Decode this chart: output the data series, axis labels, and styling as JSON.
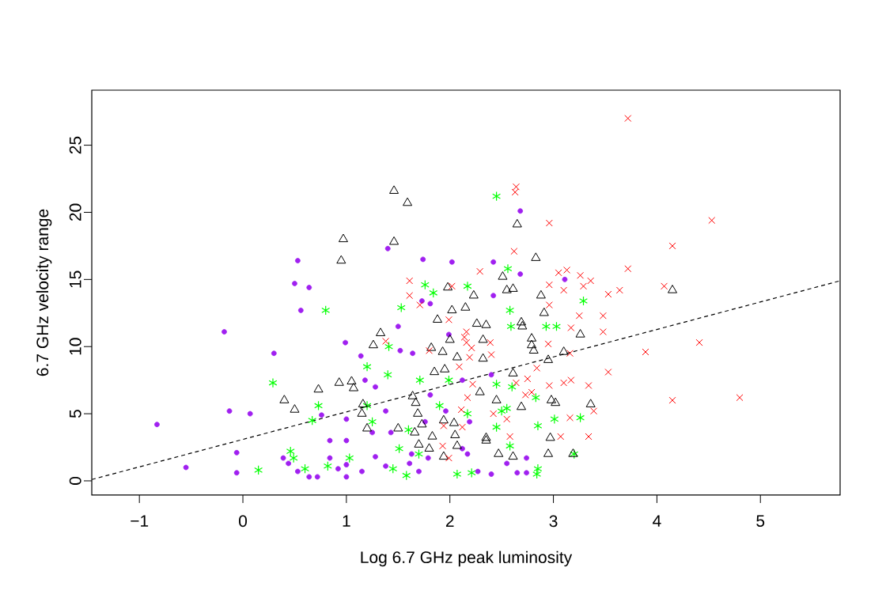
{
  "chart_data": {
    "type": "scatter",
    "xlabel": "Log 6.7 GHz peak luminosity",
    "ylabel": "6.7 GHz velocity range",
    "xlim": [
      -1.46,
      5.77
    ],
    "ylim": [
      -1.06,
      29.1
    ],
    "xticks": [
      {
        "value": -1,
        "label": "−1"
      },
      0,
      1,
      2,
      3,
      4,
      5
    ],
    "yticks": [
      0,
      5,
      10,
      15,
      20,
      25
    ],
    "grid": false,
    "series": [
      {
        "color": "#a020f0",
        "marker": "circle",
        "x": [
          -0.83,
          -0.55,
          -0.18,
          -0.13,
          -0.06,
          -0.06,
          0.07,
          0.3,
          0.53,
          0.5,
          0.64,
          0.56,
          0.39,
          0.44,
          0.53,
          0.64,
          0.72,
          0.76,
          0.84,
          0.84,
          0.92,
          0.99,
          1.0,
          1.0,
          1.0,
          1.0,
          1.14,
          1.18,
          1.28,
          1.25,
          1.28,
          1.15,
          1.38,
          1.4,
          1.5,
          1.52,
          1.38,
          1.43,
          1.61,
          1.64,
          1.73,
          1.81,
          2.02,
          1.7,
          1.76,
          2.17,
          2.68,
          1.74,
          2.42,
          2.68,
          3.11,
          2.42,
          1.99,
          2.12,
          2.4,
          1.81,
          1.96,
          2.19,
          1.63,
          1.79,
          2.12,
          2.27,
          2.4,
          2.55,
          2.65,
          2.74,
          2.74
        ],
        "values": [
          4.2,
          1.0,
          11.1,
          5.2,
          2.1,
          0.6,
          5.0,
          9.5,
          16.4,
          14.7,
          14.4,
          12.7,
          1.7,
          1.3,
          0.7,
          0.3,
          0.3,
          4.9,
          3.0,
          1.7,
          0.9,
          10.3,
          4.6,
          3.0,
          1.2,
          0.3,
          9.3,
          7.5,
          7.0,
          3.6,
          1.8,
          0.7,
          5.2,
          17.3,
          11.5,
          9.7,
          1.1,
          3.6,
          1.3,
          9.5,
          13.4,
          13.2,
          16.3,
          0.7,
          4.4,
          2.0,
          20.1,
          16.5,
          16.3,
          15.4,
          15.0,
          13.8,
          10.9,
          7.5,
          7.9,
          6.4,
          5.2,
          4.4,
          2.0,
          1.7,
          2.4,
          0.7,
          0.5,
          1.3,
          0.6,
          0.6,
          1.7
        ]
      },
      {
        "color": "#00ff00",
        "x": [
          0.15,
          0.29,
          0.46,
          0.49,
          0.6,
          0.73,
          0.67,
          0.8,
          0.82,
          1.03,
          1.2,
          1.4,
          1.41,
          1.2,
          1.25,
          1.53,
          1.6,
          1.51,
          1.71,
          1.76,
          1.84,
          1.7,
          1.45,
          1.58,
          1.9,
          2.17,
          2.17,
          2.07,
          2.21,
          2.45,
          2.56,
          3.29,
          2.58,
          2.59,
          2.93,
          3.03,
          1.99,
          2.45,
          2.6,
          2.5,
          2.83,
          2.55,
          3.01,
          3.26,
          2.85,
          2.45,
          2.58,
          3.2,
          2.85,
          2.84
        ],
        "values": [
          0.8,
          7.3,
          2.2,
          1.7,
          0.9,
          5.6,
          4.5,
          12.7,
          1.1,
          1.7,
          8.5,
          7.9,
          10.0,
          5.6,
          4.4,
          12.9,
          3.8,
          2.4,
          7.5,
          14.6,
          14.0,
          2.0,
          0.9,
          0.4,
          5.6,
          14.5,
          5.0,
          0.5,
          0.6,
          21.2,
          15.8,
          13.4,
          12.7,
          11.5,
          11.5,
          11.5,
          7.5,
          7.2,
          7.0,
          5.2,
          6.2,
          5.4,
          4.6,
          4.7,
          4.1,
          4.0,
          2.6,
          2.0,
          0.9,
          0.5
        ]
      },
      {
        "color": "#000000",
        "marker": "triangle",
        "x": [
          1.46,
          1.59,
          0.97,
          1.46,
          0.95,
          1.98,
          2.23,
          2.02,
          2.15,
          1.88,
          2.26,
          1.33,
          1.26,
          1.82,
          1.93,
          2.0,
          2.07,
          1.85,
          1.95,
          0.73,
          0.93,
          1.05,
          1.07,
          0.4,
          0.5,
          1.16,
          1.15,
          1.2,
          1.64,
          1.67,
          1.69,
          1.73,
          1.5,
          1.66,
          1.7,
          1.83,
          1.94,
          2.04,
          2.05,
          1.94,
          1.8,
          2.07,
          2.65,
          2.83,
          2.51,
          2.55,
          2.61,
          2.88,
          4.15,
          2.69,
          2.7,
          2.91,
          2.35,
          2.32,
          2.79,
          2.79,
          2.81,
          3.26,
          2.95,
          3.1,
          2.32,
          2.61,
          2.29,
          2.45,
          2.98,
          3.02,
          3.36,
          2.69,
          2.35,
          2.35,
          2.97,
          2.47,
          2.61,
          2.95,
          3.19
        ],
        "values": [
          21.6,
          20.7,
          18.0,
          17.8,
          16.4,
          14.4,
          13.8,
          12.7,
          12.9,
          12.0,
          11.7,
          11.0,
          10.1,
          9.9,
          9.6,
          10.5,
          9.2,
          8.1,
          8.3,
          6.8,
          7.3,
          7.4,
          6.9,
          6.0,
          5.3,
          5.7,
          5.0,
          3.9,
          6.3,
          5.8,
          5.0,
          4.2,
          3.9,
          3.6,
          2.7,
          3.3,
          4.5,
          4.3,
          3.4,
          1.8,
          2.4,
          2.6,
          19.1,
          16.6,
          15.2,
          14.2,
          14.3,
          13.8,
          14.2,
          11.8,
          11.5,
          12.5,
          11.6,
          10.5,
          10.6,
          10.1,
          9.7,
          10.9,
          9.0,
          9.6,
          9.1,
          8.0,
          6.6,
          6.0,
          6.0,
          5.8,
          5.7,
          5.5,
          3.2,
          3.0,
          3.2,
          2.0,
          1.8,
          2.0,
          2.0
        ]
      },
      {
        "color": "#ff0000",
        "marker": "cross",
        "x": [
          3.72,
          2.64,
          2.63,
          2.96,
          4.53,
          4.15,
          2.62,
          3.72,
          1.61,
          2.29,
          3.05,
          3.13,
          3.26,
          3.36,
          2.96,
          3.1,
          3.29,
          3.53,
          3.64,
          4.07,
          1.71,
          1.99,
          2.96,
          3.25,
          3.48,
          3.48,
          3.17,
          2.14,
          2.39,
          2.21,
          2.95,
          3.16,
          4.41,
          3.89,
          1.8,
          2.19,
          2.4,
          2.09,
          3.53,
          2.84,
          2.75,
          2.64,
          3.1,
          3.17,
          3.34,
          2.96,
          2.22,
          2.79,
          2.73,
          2.17,
          4.15,
          4.8,
          2.42,
          2.55,
          3.16,
          3.39,
          3.34,
          3.07,
          2.58,
          2.12,
          1.94,
          1.99,
          1.93,
          1.61,
          2.02,
          1.38,
          2.16,
          2.16,
          2.11
        ],
        "values": [
          27.0,
          21.9,
          21.5,
          19.2,
          19.4,
          17.5,
          17.1,
          15.8,
          13.8,
          15.6,
          15.5,
          15.7,
          15.3,
          14.9,
          14.6,
          14.2,
          14.5,
          13.9,
          14.2,
          14.5,
          13.1,
          12.0,
          13.1,
          12.3,
          12.3,
          11.1,
          11.4,
          10.7,
          10.3,
          9.9,
          10.2,
          9.5,
          10.3,
          9.6,
          9.7,
          9.2,
          9.4,
          8.5,
          8.1,
          8.4,
          7.6,
          7.3,
          7.3,
          7.5,
          7.1,
          7.1,
          7.2,
          6.6,
          6.4,
          6.2,
          6.0,
          6.2,
          5.0,
          4.6,
          4.7,
          5.2,
          3.3,
          3.3,
          3.3,
          4.0,
          4.1,
          1.7,
          2.6,
          14.9,
          14.5,
          10.4,
          11.1,
          10.3,
          5.3
        ]
      },
      {
        "type": "line",
        "color": "#000000",
        "marker": "none",
        "line_style": "dashed",
        "x": [
          -1.46,
          5.77
        ],
        "values": [
          0.1,
          14.9
        ]
      }
    ]
  }
}
